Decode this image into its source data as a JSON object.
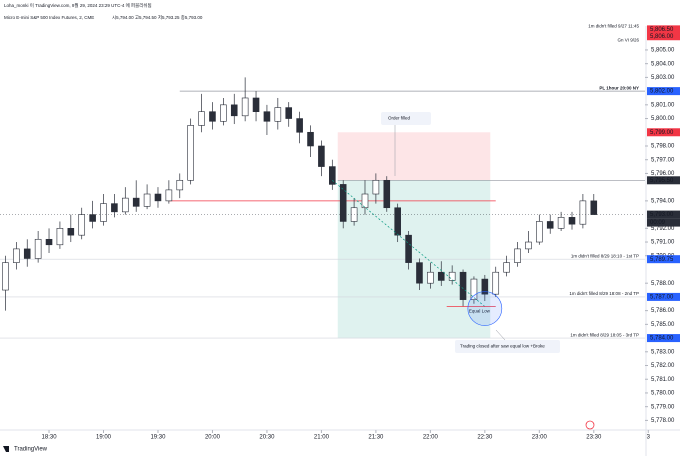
{
  "header": {
    "author": "Loha_monki 이 TradingView.com, 9월 29, 2024 23:29 UTC-4 에 퍼블리쉬됨",
    "symbol": "Micro E-mini S&P 500 Index Futures, 2, CME",
    "quote": "시5,794.00  고5,794.50  저5,793.25  종5,793.00",
    "brand": "TradingView"
  },
  "chart_data": {
    "type": "candlestick",
    "open": [
      5787.5,
      5789.5,
      5790.5,
      5789.8,
      5791.2,
      5790.8,
      5792,
      5791.5,
      5793,
      5792.5,
      5793.8,
      5793.2,
      5794.2,
      5793.6,
      5794.5,
      5794,
      5794.8,
      5795.5,
      5799.5,
      5800.5,
      5799.8,
      5801,
      5800.2,
      5801.5,
      5800.5,
      5799.8,
      5800.8,
      5800,
      5799,
      5798,
      5796.5,
      5795.2,
      5792.5,
      5793.5,
      5794.5,
      5795.5,
      5793.5,
      5791.5,
      5789.5,
      5788,
      5788.8,
      5788.2,
      5788.8,
      5786.8,
      5788.3,
      5787.2,
      5788.8,
      5789.5,
      5790.5,
      5791,
      5792.5,
      5792,
      5792.8,
      5792.3,
      5794
    ],
    "high": [
      5790,
      5791,
      5791.2,
      5791.8,
      5792,
      5792.5,
      5793,
      5793.5,
      5794,
      5794.5,
      5794.5,
      5795,
      5795.5,
      5795.2,
      5795,
      5795.5,
      5796,
      5800,
      5801.8,
      5801.2,
      5801.5,
      5801.8,
      5803,
      5802,
      5801,
      5801.5,
      5801.2,
      5800.5,
      5799.5,
      5798.4,
      5797,
      5795.5,
      5794.2,
      5795.5,
      5796,
      5795.8,
      5793.8,
      5791.8,
      5789.8,
      5789.5,
      5789.6,
      5789.3,
      5789,
      5788.5,
      5788.6,
      5789.2,
      5790,
      5791,
      5791.8,
      5793,
      5793,
      5793.2,
      5793.2,
      5794.5,
      5794.5
    ],
    "low": [
      5786,
      5789,
      5789.2,
      5789.5,
      5790.2,
      5790.5,
      5791,
      5791.2,
      5792,
      5792.2,
      5792.8,
      5793,
      5793.2,
      5793.4,
      5793.5,
      5793.8,
      5794.2,
      5795.2,
      5799,
      5799.2,
      5799.5,
      5799.6,
      5799.8,
      5799.8,
      5798.8,
      5799.2,
      5799.4,
      5798.2,
      5797.2,
      5795.8,
      5794.8,
      5792,
      5792.2,
      5793,
      5793.8,
      5793.2,
      5791,
      5789,
      5787.5,
      5787.6,
      5787.8,
      5787.9,
      5786.3,
      5786.5,
      5786.7,
      5787,
      5788.5,
      5789.2,
      5790.2,
      5790.8,
      5791.6,
      5791.8,
      5791.9,
      5792,
      5793.25
    ],
    "close": [
      5789.5,
      5790.5,
      5789.8,
      5791.2,
      5790.8,
      5792,
      5791.5,
      5793,
      5792.5,
      5793.8,
      5793.2,
      5794.2,
      5793.6,
      5794.5,
      5794,
      5794.8,
      5795.5,
      5799.5,
      5800.5,
      5799.8,
      5801,
      5800.2,
      5801.5,
      5800.5,
      5799.8,
      5800.8,
      5800,
      5799,
      5798,
      5796.5,
      5795.2,
      5792.5,
      5793.5,
      5794.5,
      5795.5,
      5793.5,
      5791.5,
      5789.5,
      5788,
      5788.8,
      5788.2,
      5788.8,
      5786.8,
      5788.3,
      5787.2,
      5788.8,
      5789.5,
      5790.5,
      5791,
      5792.5,
      5792,
      5792.8,
      5792.3,
      5794,
      5793
    ],
    "up_color": "#ffffff",
    "down_color": "#2a2e39",
    "border_color": "#2a2e39",
    "xlim": [
      -0.5,
      58.7
    ],
    "xticks": [
      {
        "value": 4,
        "label": "18:30"
      },
      {
        "value": 9,
        "label": "19:00"
      },
      {
        "value": 14,
        "label": "19:30"
      },
      {
        "value": 19,
        "label": "20:00"
      },
      {
        "value": 24,
        "label": "20:30"
      },
      {
        "value": 29,
        "label": "21:00"
      },
      {
        "value": 34,
        "label": "21:30"
      },
      {
        "value": 39,
        "label": "22:00"
      },
      {
        "value": 44,
        "label": "22:30"
      },
      {
        "value": 49,
        "label": "23:00"
      },
      {
        "value": 54,
        "label": "23:30"
      },
      {
        "value": 59,
        "label": "3"
      }
    ],
    "ylim": [
      5777.3,
      5806.6
    ],
    "yticks": [
      {
        "value": 5778,
        "label": "5,778.00"
      },
      {
        "value": 5779,
        "label": "5,779.00"
      },
      {
        "value": 5780,
        "label": "5,780.00"
      },
      {
        "value": 5781,
        "label": "5,781.00"
      },
      {
        "value": 5782,
        "label": "5,782.00"
      },
      {
        "value": 5783,
        "label": "5,783.00"
      },
      {
        "value": 5785,
        "label": "5,785.00"
      },
      {
        "value": 5786,
        "label": "5,786.00"
      },
      {
        "value": 5788,
        "label": "5,788.00"
      },
      {
        "value": 5790,
        "label": "5,790.00"
      },
      {
        "value": 5791,
        "label": "5,791.00"
      },
      {
        "value": 5792,
        "label": "5,792.00"
      },
      {
        "value": 5794,
        "label": "5,794.00"
      },
      {
        "value": 5796,
        "label": "5,796.00"
      },
      {
        "value": 5797,
        "label": "5,797.00"
      },
      {
        "value": 5798,
        "label": "5,798.00"
      },
      {
        "value": 5800,
        "label": "5,800.00"
      },
      {
        "value": 5801,
        "label": "5,801.00"
      },
      {
        "value": 5803,
        "label": "5,803.00"
      },
      {
        "value": 5804,
        "label": "5,804.00"
      },
      {
        "value": 5805,
        "label": "5,805.00"
      }
    ],
    "levels": [
      {
        "value": 5806.5,
        "label": "1m didn't filled 9/27 11:45",
        "color": "#f23645"
      },
      {
        "value": 5805.5,
        "label": "Gn VI 9/26",
        "color": "#ffffff"
      },
      {
        "value": 5802,
        "label": "PL 1hour 20:00 NY",
        "color": "#9598a1"
      },
      {
        "value": 5789.75,
        "label": "1m didn't filled 8/29 18:10 - 1st TP",
        "color": "#d1d4dc"
      },
      {
        "value": 5787,
        "label": "1m didn't filled 8/29 18:08 - 2nd TP",
        "color": "#d1d4dc"
      },
      {
        "value": 5784,
        "label": "1m didn't filled 8/29 18:05 - 3rd TP",
        "color": "#d1d4dc"
      }
    ],
    "tags": [
      {
        "value": 5806.5,
        "label": "5,806.50",
        "color": "#f23645"
      },
      {
        "value": 5806,
        "label": "5,806.00",
        "color": "#f23645"
      },
      {
        "value": 5802,
        "label": "5,802.00",
        "color": "#2962ff"
      },
      {
        "value": 5799,
        "label": "5,799.00",
        "color": "#f23645"
      },
      {
        "value": 5795.5,
        "label": "5,795.50",
        "color": "#2a2e39"
      },
      {
        "value": 5793,
        "label": "5,793.00",
        "color": "#2a2e39"
      },
      {
        "value": 5789.75,
        "label": "5,789.75",
        "color": "#2962ff"
      },
      {
        "value": 5787,
        "label": "5,787.00",
        "color": "#2962ff"
      },
      {
        "value": 5784,
        "label": "5,784.00",
        "color": "#2962ff"
      }
    ],
    "countdown": "00:09",
    "red_line": 5794,
    "position": {
      "entry": 5795.5,
      "stop": 5799,
      "target": 5784
    },
    "equal_low": {
      "value": 5786.3,
      "label": "Equal Low"
    },
    "notes": [
      "Order filled",
      "Trading closed after saw equal low +Broke"
    ]
  }
}
